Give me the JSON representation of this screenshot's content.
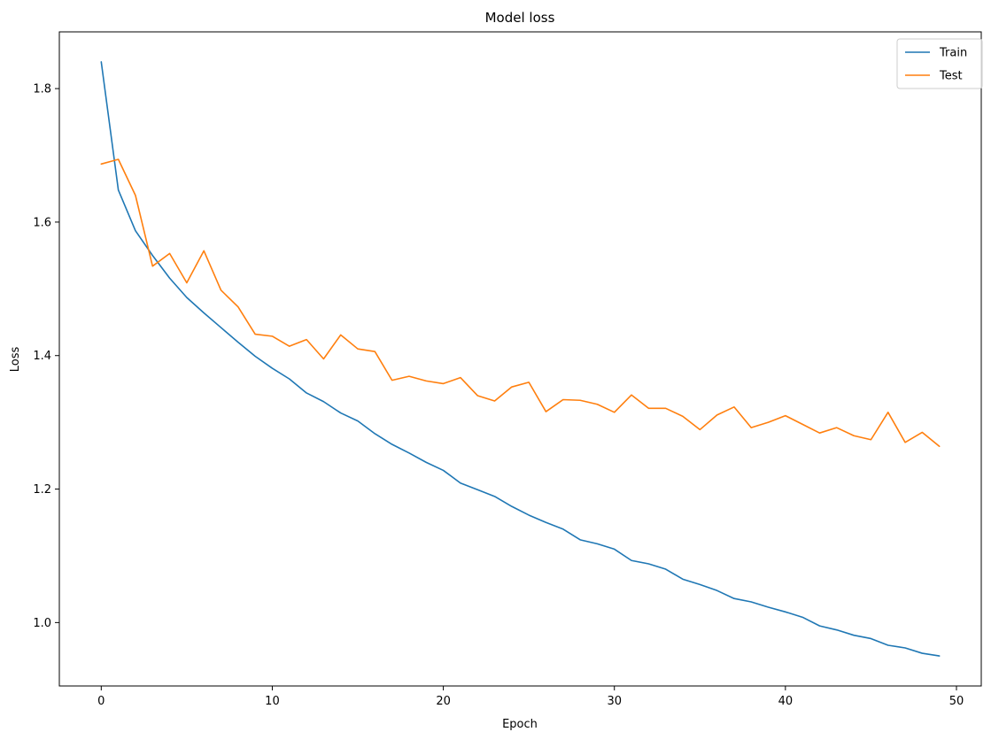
{
  "chart_data": {
    "type": "line",
    "title": "Model loss",
    "xlabel": "Epoch",
    "ylabel": "Loss",
    "xlim": [
      -2.45,
      51.45
    ],
    "ylim": [
      0.905,
      1.885
    ],
    "xticks": [
      0,
      10,
      20,
      30,
      40,
      50
    ],
    "yticks": [
      1.0,
      1.2,
      1.4,
      1.6,
      1.8
    ],
    "xtick_labels": [
      "0",
      "10",
      "20",
      "30",
      "40",
      "50"
    ],
    "ytick_labels": [
      "1.0",
      "1.2",
      "1.4",
      "1.6",
      "1.8"
    ],
    "grid": false,
    "legend_position": "top-right",
    "x": [
      0,
      1,
      2,
      3,
      4,
      5,
      6,
      7,
      8,
      9,
      10,
      11,
      12,
      13,
      14,
      15,
      16,
      17,
      18,
      19,
      20,
      21,
      22,
      23,
      24,
      25,
      26,
      27,
      28,
      29,
      30,
      31,
      32,
      33,
      34,
      35,
      36,
      37,
      38,
      39,
      40,
      41,
      42,
      43,
      44,
      45,
      46,
      47,
      48,
      49
    ],
    "series": [
      {
        "name": "Train",
        "color": "#1f77b4",
        "values": [
          1.84,
          1.648,
          1.587,
          1.55,
          1.516,
          1.487,
          1.464,
          1.442,
          1.42,
          1.399,
          1.381,
          1.365,
          1.344,
          1.331,
          1.314,
          1.302,
          1.283,
          1.267,
          1.254,
          1.24,
          1.228,
          1.209,
          1.199,
          1.189,
          1.174,
          1.161,
          1.15,
          1.14,
          1.124,
          1.118,
          1.11,
          1.093,
          1.088,
          1.08,
          1.065,
          1.057,
          1.048,
          1.036,
          1.031,
          1.023,
          1.016,
          1.008,
          0.995,
          0.989,
          0.981,
          0.976,
          0.966,
          0.962,
          0.954,
          0.95
        ]
      },
      {
        "name": "Test",
        "color": "#ff7f0e",
        "values": [
          1.687,
          1.694,
          1.64,
          1.534,
          1.553,
          1.509,
          1.557,
          1.498,
          1.473,
          1.432,
          1.429,
          1.414,
          1.424,
          1.395,
          1.431,
          1.41,
          1.406,
          1.363,
          1.369,
          1.362,
          1.358,
          1.367,
          1.34,
          1.332,
          1.353,
          1.36,
          1.316,
          1.334,
          1.333,
          1.327,
          1.315,
          1.341,
          1.321,
          1.321,
          1.309,
          1.289,
          1.311,
          1.323,
          1.292,
          1.3,
          1.31,
          1.297,
          1.284,
          1.292,
          1.28,
          1.274,
          1.315,
          1.27,
          1.285,
          1.264
        ]
      }
    ]
  }
}
